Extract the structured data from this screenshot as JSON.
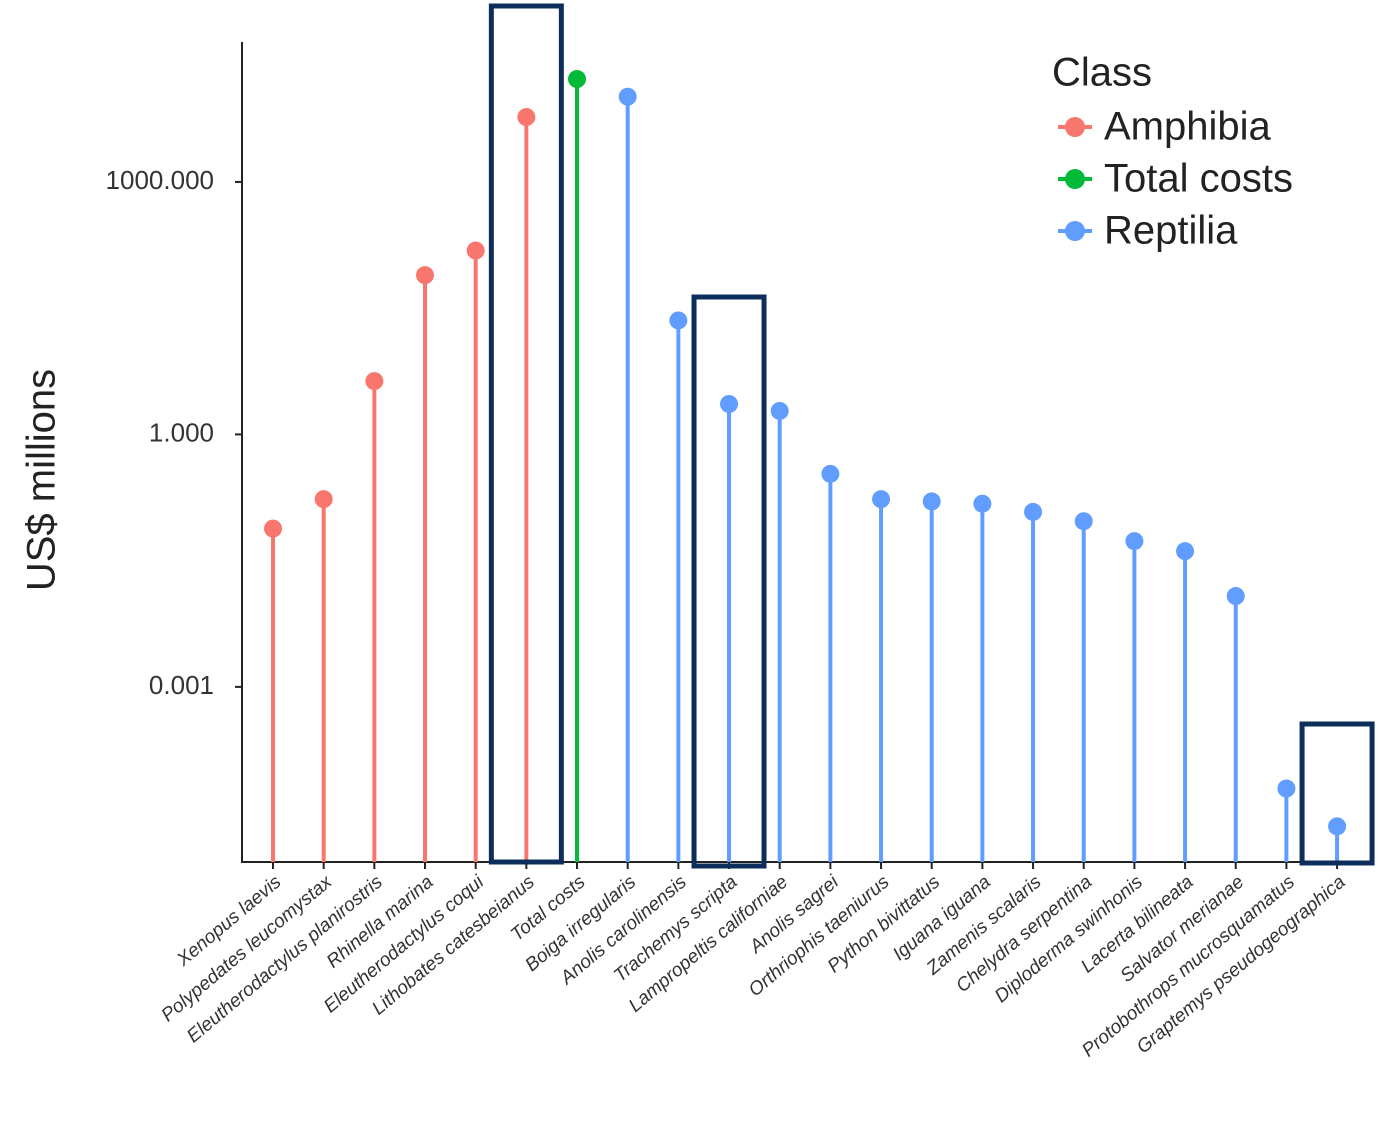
{
  "chart_data": {
    "type": "lollipop",
    "y_label": "US$ millions",
    "log_y": true,
    "ylim": [
      8.3e-06,
      46000
    ],
    "yticks": [
      {
        "value": 1000,
        "label": "1000.000"
      },
      {
        "value": 1,
        "label": "1.000"
      },
      {
        "value": 0.001,
        "label": "0.001"
      }
    ],
    "legend_title": "Class",
    "legend_position": "top-right",
    "categories": [
      "Xenopus laevis",
      "Polypedates leucomystax",
      "Eleutherodactylus planirostris",
      "Rhinella marina",
      "Eleutherodactylus coqui",
      "Lithobates catesbeianus",
      "Total costs",
      "Boiga irregularis",
      "Anolis carolinensis",
      "Trachemys scripta",
      "Lampropeltis californiae",
      "Anolis sagrei",
      "Orthriophis taeniurus",
      "Python bivittatus",
      "Iguana iguana",
      "Zamenis scalaris",
      "Chelydra serpentina",
      "Diploderma swinhonis",
      "Lacerta bilineata",
      "Salvator merianae",
      "Protobothrops mucrosquamatus",
      "Graptemys pseudogeographica"
    ],
    "series": [
      {
        "name": "Amphibia",
        "color": "#f8766d",
        "values": [
          0.076,
          0.17,
          4.3,
          78,
          153,
          5900,
          null,
          null,
          null,
          null,
          null,
          null,
          null,
          null,
          null,
          null,
          null,
          null,
          null,
          null,
          null,
          null
        ]
      },
      {
        "name": "Total costs",
        "color": "#00ba38",
        "values": [
          null,
          null,
          null,
          null,
          null,
          null,
          16700,
          null,
          null,
          null,
          null,
          null,
          null,
          null,
          null,
          null,
          null,
          null,
          null,
          null,
          null,
          null
        ]
      },
      {
        "name": "Reptilia",
        "color": "#619cff",
        "values": [
          null,
          null,
          null,
          null,
          null,
          null,
          null,
          10300,
          22.6,
          2.3,
          1.9,
          0.34,
          0.17,
          0.16,
          0.15,
          0.12,
          0.093,
          0.054,
          0.041,
          0.012,
          6.2e-05,
          2.2e-05
        ]
      }
    ]
  }
}
